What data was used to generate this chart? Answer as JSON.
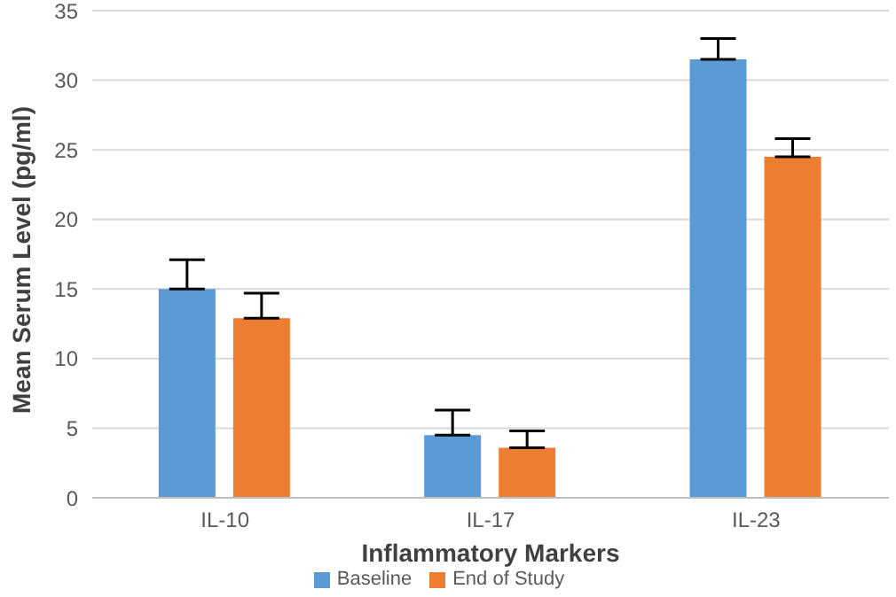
{
  "chart_data": {
    "type": "bar",
    "xlabel": "Inflammatory Markers",
    "ylabel": "Mean Serum Level (pg/ml)",
    "categories": [
      "IL-10",
      "IL-17",
      "IL-23"
    ],
    "series": [
      {
        "name": "Baseline",
        "color": "#5b9bd5",
        "values": [
          15.0,
          4.5,
          31.5
        ],
        "errors": [
          [
            15.0,
            17.1
          ],
          [
            4.5,
            6.3
          ],
          [
            31.5,
            33.0
          ]
        ]
      },
      {
        "name": "End of Study",
        "color": "#ed7d31",
        "values": [
          12.9,
          3.6,
          24.5
        ],
        "errors": [
          [
            12.9,
            14.7
          ],
          [
            3.6,
            4.8
          ],
          [
            24.5,
            25.8
          ]
        ]
      }
    ],
    "ylim": [
      0,
      35
    ],
    "yticks": [
      0,
      5,
      10,
      15,
      20,
      25,
      30,
      35
    ],
    "grid": "y",
    "legend": "bottom"
  }
}
